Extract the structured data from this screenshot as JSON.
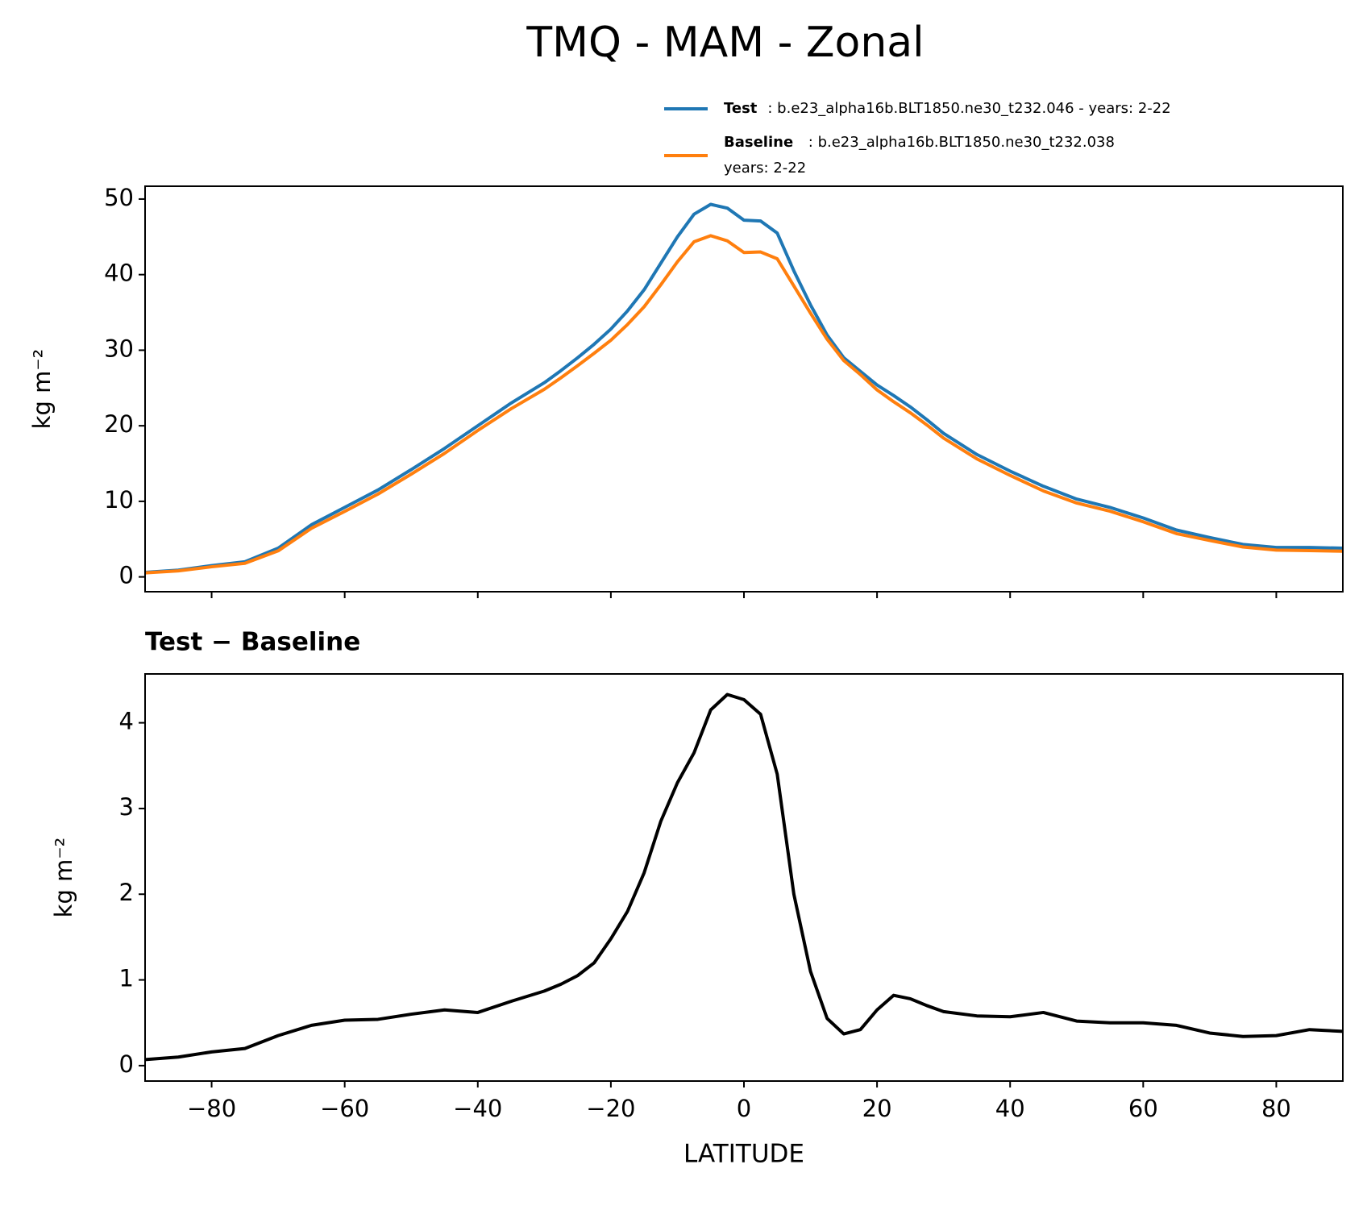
{
  "chart_data": [
    {
      "type": "line",
      "title": "TMQ - MAM - Zonal",
      "ylabel": "kg m⁻²",
      "x": [
        -90,
        -85,
        -80,
        -75,
        -70,
        -65,
        -60,
        -55,
        -50,
        -45,
        -40,
        -35,
        -30,
        -27.5,
        -25,
        -22.5,
        -20,
        -17.5,
        -15,
        -12.5,
        -10,
        -7.5,
        -5,
        -2.5,
        0,
        2.5,
        5,
        7.5,
        10,
        12.5,
        15,
        17.5,
        20,
        22.5,
        25,
        27.5,
        30,
        35,
        40,
        45,
        50,
        55,
        60,
        65,
        70,
        75,
        80,
        85,
        90
      ],
      "series": [
        {
          "name": "Test",
          "description": [
            ": b.e23_alpha16b.BLT1850.ne30_t232.046 - years: 2-22"
          ],
          "color": "#1f77b4",
          "values": [
            0.6,
            0.9,
            1.5,
            2.0,
            3.8,
            6.9,
            9.2,
            11.5,
            14.2,
            17.0,
            20.0,
            23.0,
            25.7,
            27.3,
            29.0,
            30.8,
            32.8,
            35.2,
            38.0,
            41.5,
            45.0,
            48.0,
            49.3,
            48.8,
            47.2,
            47.1,
            45.5,
            40.5,
            36.0,
            32.0,
            29.0,
            27.2,
            25.4,
            24.0,
            22.5,
            20.8,
            19.0,
            16.2,
            14.0,
            12.0,
            10.3,
            9.2,
            7.8,
            6.2,
            5.2,
            4.3,
            3.9,
            3.9,
            3.8
          ]
        },
        {
          "name": "Baseline",
          "description": [
            ": b.e23_alpha16b.BLT1850.ne30_t232.038",
            "years: 2-22"
          ],
          "color": "#ff7f0e",
          "values": [
            0.53,
            0.8,
            1.34,
            1.8,
            3.45,
            6.43,
            8.67,
            10.96,
            13.6,
            16.35,
            19.38,
            22.25,
            24.83,
            26.35,
            27.95,
            29.6,
            31.32,
            33.4,
            35.75,
            38.65,
            41.7,
            44.35,
            45.15,
            44.47,
            42.93,
            43.0,
            42.1,
            38.5,
            34.9,
            31.45,
            28.63,
            26.78,
            24.75,
            23.18,
            21.72,
            20.1,
            18.37,
            15.62,
            13.43,
            11.38,
            9.78,
            8.7,
            7.3,
            5.73,
            4.82,
            3.96,
            3.55,
            3.48,
            3.4
          ]
        }
      ],
      "xlim": [
        -90,
        90
      ],
      "xticks": [
        -80,
        -60,
        -40,
        -20,
        0,
        20,
        40,
        60,
        80
      ],
      "ylim": [
        -1.96,
        51.7
      ],
      "yticks": [
        0,
        10,
        20,
        30,
        40,
        50
      ],
      "grid": false,
      "legend": "above-right"
    },
    {
      "type": "line",
      "title": "Test − Baseline",
      "ylabel": "kg m⁻²",
      "xlabel": "LATITUDE",
      "x": [
        -90,
        -85,
        -80,
        -75,
        -70,
        -65,
        -60,
        -55,
        -50,
        -45,
        -40,
        -35,
        -30,
        -27.5,
        -25,
        -22.5,
        -20,
        -17.5,
        -15,
        -12.5,
        -10,
        -7.5,
        -5,
        -2.5,
        0,
        2.5,
        5,
        7.5,
        10,
        12.5,
        15,
        17.5,
        20,
        22.5,
        25,
        27.5,
        30,
        35,
        40,
        45,
        50,
        55,
        60,
        65,
        70,
        75,
        80,
        85,
        90
      ],
      "series": [
        {
          "color": "#000000",
          "values": [
            0.07,
            0.1,
            0.16,
            0.2,
            0.35,
            0.47,
            0.53,
            0.54,
            0.6,
            0.65,
            0.62,
            0.75,
            0.87,
            0.95,
            1.05,
            1.2,
            1.48,
            1.8,
            2.25,
            2.85,
            3.3,
            3.65,
            4.15,
            4.33,
            4.27,
            4.1,
            3.4,
            2.0,
            1.1,
            0.55,
            0.37,
            0.42,
            0.65,
            0.82,
            0.78,
            0.7,
            0.63,
            0.58,
            0.57,
            0.62,
            0.52,
            0.5,
            0.5,
            0.47,
            0.38,
            0.34,
            0.35,
            0.42,
            0.4
          ]
        }
      ],
      "xlim": [
        -90,
        90
      ],
      "xticks": [
        {
          "value": -80,
          "label": "−80"
        },
        {
          "value": -60,
          "label": "−60"
        },
        {
          "value": -40,
          "label": "−40"
        },
        {
          "value": -20,
          "label": "−20"
        },
        0,
        20,
        40,
        60,
        80
      ],
      "ylim": [
        -0.18,
        4.57
      ],
      "yticks": [
        0,
        1,
        2,
        3,
        4
      ],
      "grid": false
    }
  ]
}
